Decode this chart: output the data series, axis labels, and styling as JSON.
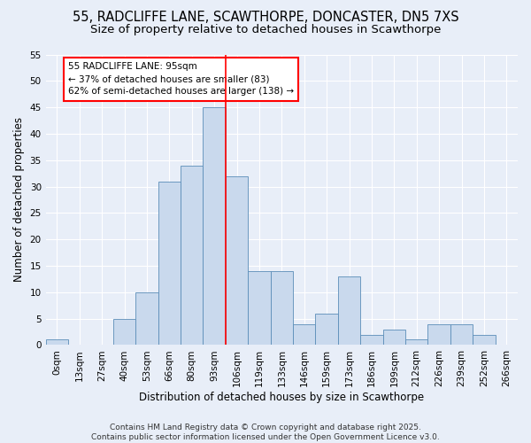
{
  "title1": "55, RADCLIFFE LANE, SCAWTHORPE, DONCASTER, DN5 7XS",
  "title2": "Size of property relative to detached houses in Scawthorpe",
  "xlabel": "Distribution of detached houses by size in Scawthorpe",
  "ylabel": "Number of detached properties",
  "bar_labels": [
    "0sqm",
    "13sqm",
    "27sqm",
    "40sqm",
    "53sqm",
    "66sqm",
    "80sqm",
    "93sqm",
    "106sqm",
    "119sqm",
    "133sqm",
    "146sqm",
    "159sqm",
    "173sqm",
    "186sqm",
    "199sqm",
    "212sqm",
    "226sqm",
    "239sqm",
    "252sqm",
    "266sqm"
  ],
  "bar_values": [
    1,
    0,
    0,
    5,
    10,
    31,
    34,
    45,
    32,
    14,
    14,
    4,
    6,
    13,
    2,
    3,
    1,
    4,
    4,
    2,
    0
  ],
  "bar_color": "#c9d9ed",
  "bar_edge_color": "#5b8db8",
  "background_color": "#e8eef8",
  "vline_x": 7.5,
  "vline_color": "red",
  "annotation_text": "55 RADCLIFFE LANE: 95sqm\n← 37% of detached houses are smaller (83)\n62% of semi-detached houses are larger (138) →",
  "annotation_box_color": "white",
  "annotation_box_edge_color": "red",
  "ylim": [
    0,
    55
  ],
  "yticks": [
    0,
    5,
    10,
    15,
    20,
    25,
    30,
    35,
    40,
    45,
    50,
    55
  ],
  "footer": "Contains HM Land Registry data © Crown copyright and database right 2025.\nContains public sector information licensed under the Open Government Licence v3.0.",
  "title_fontsize": 10.5,
  "subtitle_fontsize": 9.5,
  "axis_label_fontsize": 8.5,
  "tick_fontsize": 7.5,
  "annotation_fontsize": 7.5,
  "footer_fontsize": 6.5
}
